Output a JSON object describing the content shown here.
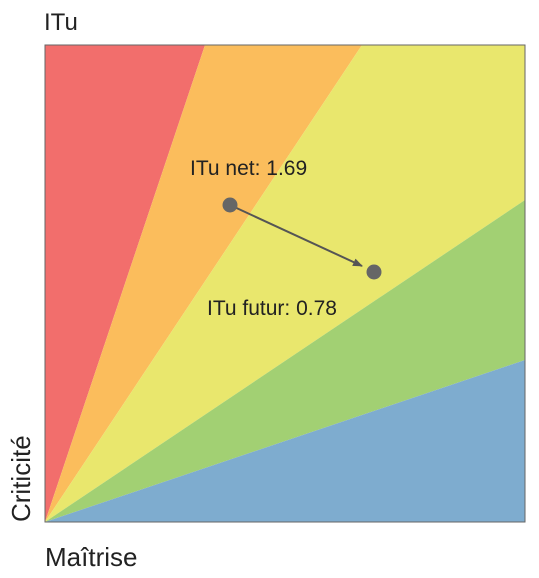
{
  "title": "ITu",
  "y_axis_label": "Criticité",
  "x_axis_label": "Maîtrise",
  "points": [
    {
      "label": "ITu net: 1.69"
    },
    {
      "label": "ITu futur: 0.78"
    }
  ]
}
